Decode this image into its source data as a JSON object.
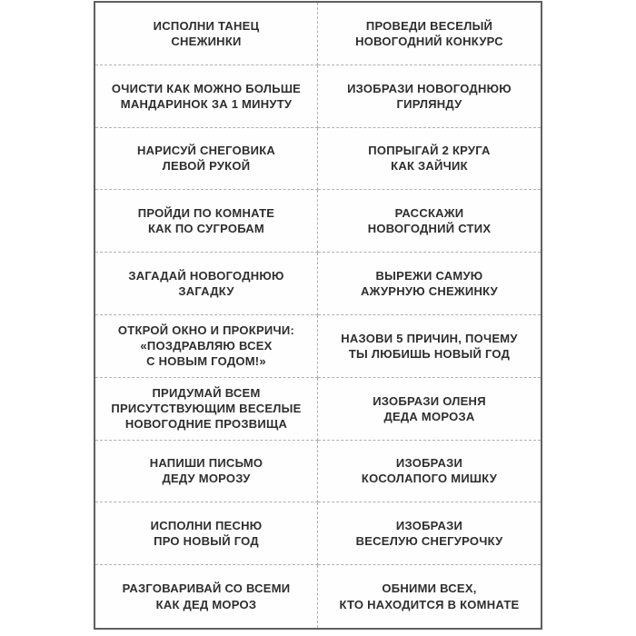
{
  "sheet": {
    "colors": {
      "border_color": "#5f5f5f",
      "divider_color": "#b0b0b0",
      "text_color": "#2e2e2e",
      "page_bg": "#ffffff",
      "sheet_bg": "#fefefe"
    },
    "grid": {
      "columns": 2,
      "rows": 10
    },
    "cards": [
      {
        "lines": [
          "ИСПОЛНИ ТАНЕЦ",
          "СНЕЖИНКИ"
        ]
      },
      {
        "lines": [
          "ПРОВЕДИ ВЕСЕЛЫЙ",
          "НОВОГОДНИЙ КОНКУРС"
        ]
      },
      {
        "lines": [
          "ОЧИСТИ КАК МОЖНО БОЛЬШЕ",
          "МАНДАРИНОК ЗА 1 МИНУТУ"
        ]
      },
      {
        "lines": [
          "ИЗОБРАЗИ НОВОГОДНЮЮ",
          "ГИРЛЯНДУ"
        ]
      },
      {
        "lines": [
          "НАРИСУЙ СНЕГОВИКА",
          "ЛЕВОЙ РУКОЙ"
        ]
      },
      {
        "lines": [
          "ПОПРЫГАЙ 2 КРУГА",
          "КАК ЗАЙЧИК"
        ]
      },
      {
        "lines": [
          "ПРОЙДИ ПО КОМНАТЕ",
          "КАК ПО СУГРОБАМ"
        ]
      },
      {
        "lines": [
          "РАССКАЖИ",
          "НОВОГОДНИЙ СТИХ"
        ]
      },
      {
        "lines": [
          "ЗАГАДАЙ НОВОГОДНЮЮ",
          "ЗАГАДКУ"
        ]
      },
      {
        "lines": [
          "ВЫРЕЖИ САМУЮ",
          "АЖУРНУЮ СНЕЖИНКУ"
        ]
      },
      {
        "lines": [
          "ОТКРОЙ ОКНО И ПРОКРИЧИ:",
          "«ПОЗДРАВЛЯЮ ВСЕХ",
          "С НОВЫМ ГОДОМ!»"
        ]
      },
      {
        "lines": [
          "НАЗОВИ 5 ПРИЧИН, ПОЧЕМУ",
          "ТЫ ЛЮБИШЬ НОВЫЙ ГОД"
        ]
      },
      {
        "lines": [
          "ПРИДУМАЙ ВСЕМ",
          "ПРИСУТСТВУЮЩИМ ВЕСЕЛЫЕ",
          "НОВОГОДНИЕ ПРОЗВИЩА"
        ]
      },
      {
        "lines": [
          "ИЗОБРАЗИ ОЛЕНЯ",
          "ДЕДА МОРОЗА"
        ]
      },
      {
        "lines": [
          "НАПИШИ ПИСЬМО",
          "ДЕДУ МОРОЗУ"
        ]
      },
      {
        "lines": [
          "ИЗОБРАЗИ",
          "КОСОЛАПОГО МИШКУ"
        ]
      },
      {
        "lines": [
          "ИСПОЛНИ ПЕСНЮ",
          "ПРО НОВЫЙ ГОД"
        ]
      },
      {
        "lines": [
          "ИЗОБРАЗИ",
          "ВЕСЕЛУЮ СНЕГУРОЧКУ"
        ]
      },
      {
        "lines": [
          "РАЗГОВАРИВАЙ СО ВСЕМИ",
          "КАК ДЕД МОРОЗ"
        ]
      },
      {
        "lines": [
          "ОБНИМИ ВСЕХ,",
          "КТО НАХОДИТСЯ В КОМНАТЕ"
        ]
      }
    ]
  }
}
